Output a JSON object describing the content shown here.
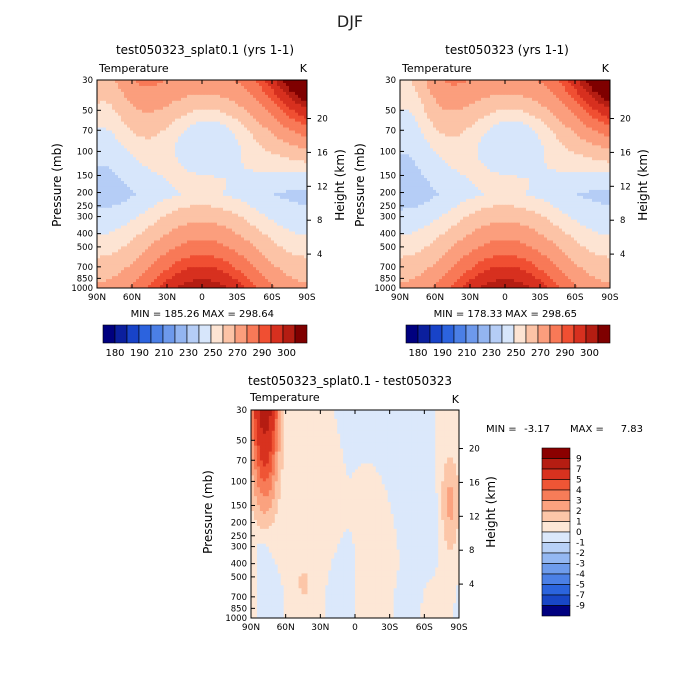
{
  "page_title": "DJF",
  "colors": {
    "pos": [
      "#ffffff",
      "#fde4d3",
      "#fcc3a6",
      "#fb9e7d",
      "#f87957",
      "#f04f32",
      "#d7301f",
      "#b41d12",
      "#7f0000"
    ],
    "neg": [
      "#ffffff",
      "#d7e6fb",
      "#b5cdf6",
      "#93b5f1",
      "#6d99ec",
      "#4b7fe6",
      "#2c63de",
      "#1843c8",
      "#0b1f9e",
      "#00007f"
    ],
    "diff_neg": [
      "#dbe8fb",
      "#b8d1f7",
      "#94b8f2",
      "#6e9cec",
      "#4b80e6",
      "#2b64dd",
      "#1846c6",
      "#0b2aa6",
      "#00007f"
    ],
    "diff_pos": [
      "#fde7d6",
      "#fcc6a8",
      "#fba27f",
      "#f77c58",
      "#ef5535",
      "#d8321f",
      "#b51d12",
      "#8b0000"
    ]
  },
  "chart_data": [
    {
      "type": "contour",
      "title": "test050323_splat0.1 (yrs 1-1)",
      "field": "Temperature",
      "units": "K",
      "xlabel": "",
      "ylabel": "Pressure (mb)",
      "y2label": "Height (km)",
      "x_ticks": [
        "90N",
        "60N",
        "30N",
        "0",
        "30S",
        "60S",
        "90S"
      ],
      "x_values": [
        -90,
        -60,
        -30,
        0,
        30,
        60,
        90
      ],
      "y_ticks": [
        "30",
        "50",
        "70",
        "100",
        "150",
        "200",
        "250",
        "300",
        "400",
        "500",
        "700",
        "850",
        "1000"
      ],
      "y_values": [
        30,
        50,
        70,
        100,
        150,
        200,
        250,
        300,
        400,
        500,
        700,
        850,
        1000
      ],
      "y2_ticks": [
        "4",
        "8",
        "12",
        "16",
        "20"
      ],
      "ylim": [
        1000,
        30
      ],
      "xlim": [
        -90,
        90
      ],
      "min_label": "MIN = 185.26",
      "max_label": "MAX = 298.64",
      "min": 185.26,
      "max": 298.64,
      "variant": 0
    },
    {
      "type": "contour",
      "title": "test050323 (yrs 1-1)",
      "field": "Temperature",
      "units": "K",
      "xlabel": "",
      "ylabel": "Pressure (mb)",
      "y2label": "Height (km)",
      "x_ticks": [
        "90N",
        "60N",
        "30N",
        "0",
        "30S",
        "60S",
        "90S"
      ],
      "x_values": [
        -90,
        -60,
        -30,
        0,
        30,
        60,
        90
      ],
      "y_ticks": [
        "30",
        "50",
        "70",
        "100",
        "150",
        "200",
        "250",
        "300",
        "400",
        "500",
        "700",
        "850",
        "1000"
      ],
      "y_values": [
        30,
        50,
        70,
        100,
        150,
        200,
        250,
        300,
        400,
        500,
        700,
        850,
        1000
      ],
      "y2_ticks": [
        "4",
        "8",
        "12",
        "16",
        "20"
      ],
      "ylim": [
        1000,
        30
      ],
      "xlim": [
        -90,
        90
      ],
      "min_label": "MIN = 178.33",
      "max_label": "MAX = 298.65",
      "min": 178.33,
      "max": 298.65,
      "variant": 1
    },
    {
      "type": "contour",
      "title": "test050323_splat0.1 - test050323",
      "field": "Temperature",
      "units": "K",
      "xlabel": "",
      "ylabel": "Pressure (mb)",
      "y2label": "Height (km)",
      "x_ticks": [
        "90N",
        "60N",
        "30N",
        "0",
        "30S",
        "60S",
        "90S"
      ],
      "x_values": [
        -90,
        -60,
        -30,
        0,
        30,
        60,
        90
      ],
      "y_ticks": [
        "30",
        "50",
        "70",
        "100",
        "150",
        "200",
        "250",
        "300",
        "400",
        "500",
        "700",
        "850",
        "1000"
      ],
      "y_values": [
        30,
        50,
        70,
        100,
        150,
        200,
        250,
        300,
        400,
        500,
        700,
        850,
        1000
      ],
      "y2_ticks": [
        "4",
        "8",
        "12",
        "16",
        "20"
      ],
      "ylim": [
        1000,
        30
      ],
      "xlim": [
        -90,
        90
      ],
      "min_label": "MIN =",
      "min_value": "-3.17",
      "max_label": "MAX =",
      "max_value": "7.83",
      "min": -3.17,
      "max": 7.83,
      "variant": 2
    }
  ],
  "colorbar_top": {
    "labels": [
      "180",
      "190",
      "210",
      "230",
      "250",
      "270",
      "290",
      "300"
    ],
    "levels": [
      180,
      190,
      200,
      210,
      220,
      230,
      240,
      250,
      260,
      270,
      280,
      290,
      300
    ]
  },
  "colorbar_diff": {
    "labels": [
      "9",
      "7",
      "5",
      "4",
      "3",
      "2",
      "1",
      "0",
      "-1",
      "-2",
      "-3",
      "-4",
      "-5",
      "-7",
      "-9"
    ],
    "levels": [
      9,
      7,
      5,
      4,
      3,
      2,
      1,
      0,
      -1,
      -2,
      -3,
      -4,
      -5,
      -7,
      -9
    ]
  }
}
